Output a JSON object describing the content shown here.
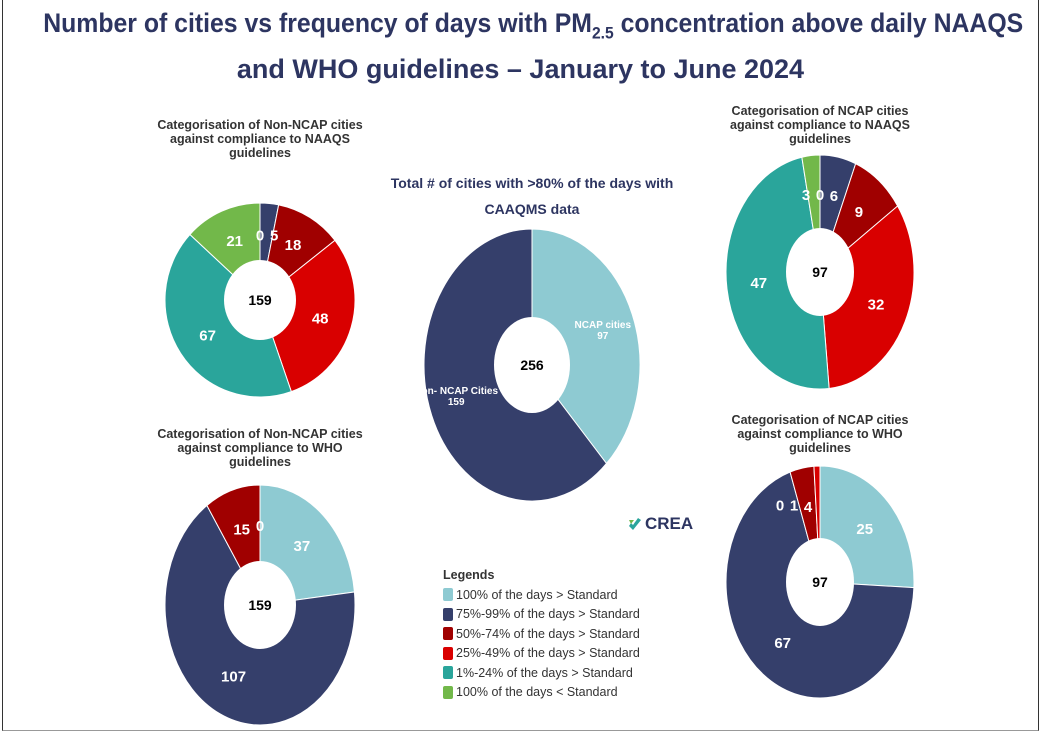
{
  "title": {
    "line1_pre": "Number of cities vs frequency of days with PM",
    "line1_sub": "2.5",
    "line1_post": " concentration above daily NAAQS",
    "line2": "and WHO guidelines – January to June 2024"
  },
  "logo": "CREA",
  "legend": {
    "heading": "Legends",
    "items": [
      {
        "label": "100% of the days > Standard",
        "color": "#8ecad2"
      },
      {
        "label": "75%-99% of the days > Standard",
        "color": "#353f6b"
      },
      {
        "label": "50%-74% of the days > Standard",
        "color": "#a00000"
      },
      {
        "label": "25%-49% of the days > Standard",
        "color": "#d90000"
      },
      {
        "label": "1%-24% of the days > Standard",
        "color": "#2aa59b"
      },
      {
        "label": "100% of the days < Standard",
        "color": "#72b84a"
      }
    ]
  },
  "chart_data": [
    {
      "type": "pie",
      "donut": true,
      "title": [
        "Categorisation of Non-NCAP cities",
        "against compliance to NAAQS",
        "guidelines"
      ],
      "center_label": "159",
      "categories": [
        "100% of the days > Standard",
        "75%-99% of the days > Standard",
        "50%-74% of the days > Standard",
        "25%-49% of the days > Standard",
        "1%-24% of the days > Standard",
        "100% of the days < Standard"
      ],
      "values": [
        0,
        5,
        18,
        48,
        67,
        21
      ]
    },
    {
      "type": "pie",
      "donut": true,
      "title": [
        "Categorisation of NCAP cities",
        "against compliance to NAAQS",
        "guidelines"
      ],
      "center_label": "97",
      "categories": [
        "100% of the days > Standard",
        "75%-99% of the days > Standard",
        "50%-74% of the days > Standard",
        "25%-49% of the days > Standard",
        "1%-24% of the days > Standard",
        "100% of the days < Standard"
      ],
      "values": [
        0,
        6,
        9,
        32,
        47,
        3
      ]
    },
    {
      "type": "pie",
      "donut": true,
      "title": [
        "Categorisation of Non-NCAP cities",
        "against compliance to WHO",
        "guidelines"
      ],
      "center_label": "159",
      "categories": [
        "100% of the days > Standard",
        "75%-99% of the days > Standard",
        "50%-74% of the days > Standard",
        "25%-49% of the days > Standard"
      ],
      "values": [
        37,
        107,
        15,
        0
      ]
    },
    {
      "type": "pie",
      "donut": true,
      "title": [
        "Categorisation of NCAP cities",
        "against compliance to WHO",
        "guidelines"
      ],
      "center_label": "97",
      "categories": [
        "100% of the days > Standard",
        "75%-99% of the days > Standard",
        "50%-74% of the days > Standard",
        "25%-49% of the days > Standard",
        "1%-24% of the days > Standard"
      ],
      "values": [
        25,
        67,
        4,
        1,
        0
      ]
    },
    {
      "type": "pie",
      "donut": true,
      "title": [
        "Total # of cities with >80% of the days with",
        "CAAQMS data"
      ],
      "center_label": "256",
      "categories": [
        "NCAP cities",
        "Non- NCAP Cities"
      ],
      "values": [
        97,
        159
      ],
      "colors": [
        "#8ecad2",
        "#353f6b"
      ]
    }
  ]
}
